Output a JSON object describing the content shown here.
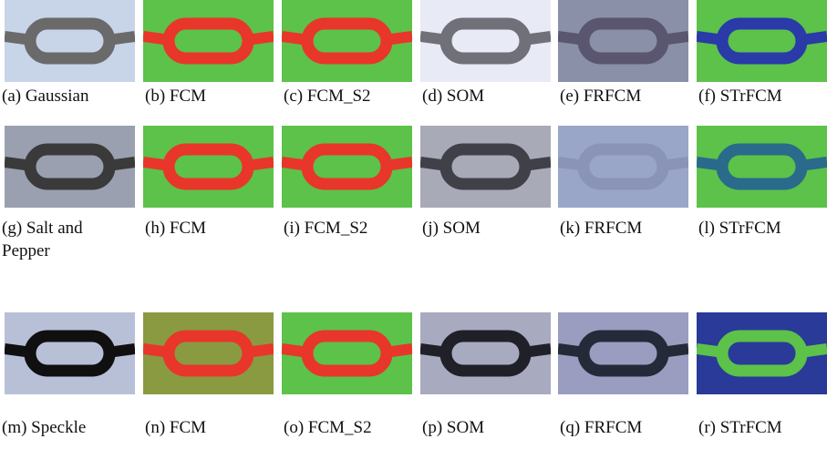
{
  "panels": [
    {
      "caption": "(a) Gaussian"
    },
    {
      "caption": "(b) FCM"
    },
    {
      "caption": "(c) FCM_S2"
    },
    {
      "caption": "(d) SOM"
    },
    {
      "caption": "(e) FRFCM"
    },
    {
      "caption": "(f) STrFCM"
    },
    {
      "caption": "(g) Salt and Pepper"
    },
    {
      "caption": "(h) FCM"
    },
    {
      "caption": "(i) FCM_S2"
    },
    {
      "caption": "(j) SOM"
    },
    {
      "caption": "(k) FRFCM"
    },
    {
      "caption": "(l) STrFCM"
    },
    {
      "caption": "(m) Speckle"
    },
    {
      "caption": "(n) FCM"
    },
    {
      "caption": "(o) FCM_S2"
    },
    {
      "caption": "(p) SOM"
    },
    {
      "caption": "(q) FRFCM"
    },
    {
      "caption": "(r) STrFCM"
    }
  ]
}
